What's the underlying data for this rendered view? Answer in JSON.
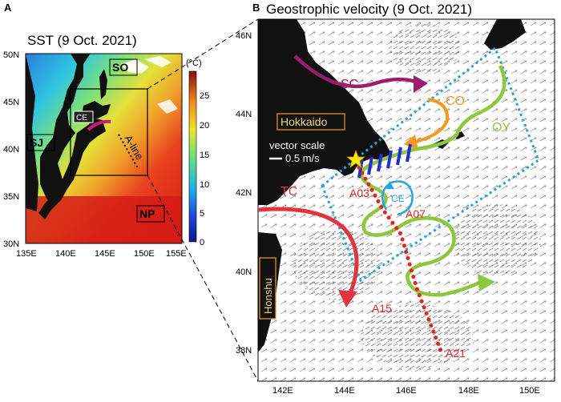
{
  "panel_a": {
    "letter": "A",
    "title": "SST (9 Oct. 2021)",
    "lat_ticks": [
      "30N",
      "35N",
      "40N",
      "45N",
      "50N"
    ],
    "lon_ticks": [
      "135E",
      "140E",
      "145E",
      "150E",
      "155E"
    ],
    "colorbar_unit": "(°C)",
    "colorbar_ticks": [
      "0",
      "5",
      "10",
      "15",
      "20",
      "25"
    ],
    "region_labels": {
      "so": "SO",
      "sj": "SJ",
      "np": "NP",
      "ce": "CE"
    },
    "line_label": "A-line"
  },
  "panel_b": {
    "letter": "B",
    "title": "Geostrophic velocity (9 Oct. 2021)",
    "lat_ticks": [
      "38N",
      "40N",
      "42N",
      "44N",
      "46N"
    ],
    "lon_ticks": [
      "142E",
      "144E",
      "146E",
      "148E",
      "150E"
    ],
    "land_labels": {
      "hokkaido": "Hokkaido",
      "honshu": "Honshu"
    },
    "vector_scale_title": "vector scale",
    "vector_scale_value": "0.5 m/s",
    "current_labels": {
      "sc": "SC",
      "co": "CO",
      "oy": "OY",
      "tc": "TC",
      "ce": "CE"
    },
    "stations": [
      "A03",
      "A07",
      "A15",
      "A21"
    ]
  },
  "colors": {
    "sc": "#9b1d6e",
    "co": "#f39a1e",
    "oy": "#8dc63f",
    "tc": "#e1343f",
    "ce": "#23a7e0",
    "stations": "#e1261c",
    "box": "#2a9de0",
    "blue_marks": "#1f2fd0",
    "star": "#ffe600"
  }
}
